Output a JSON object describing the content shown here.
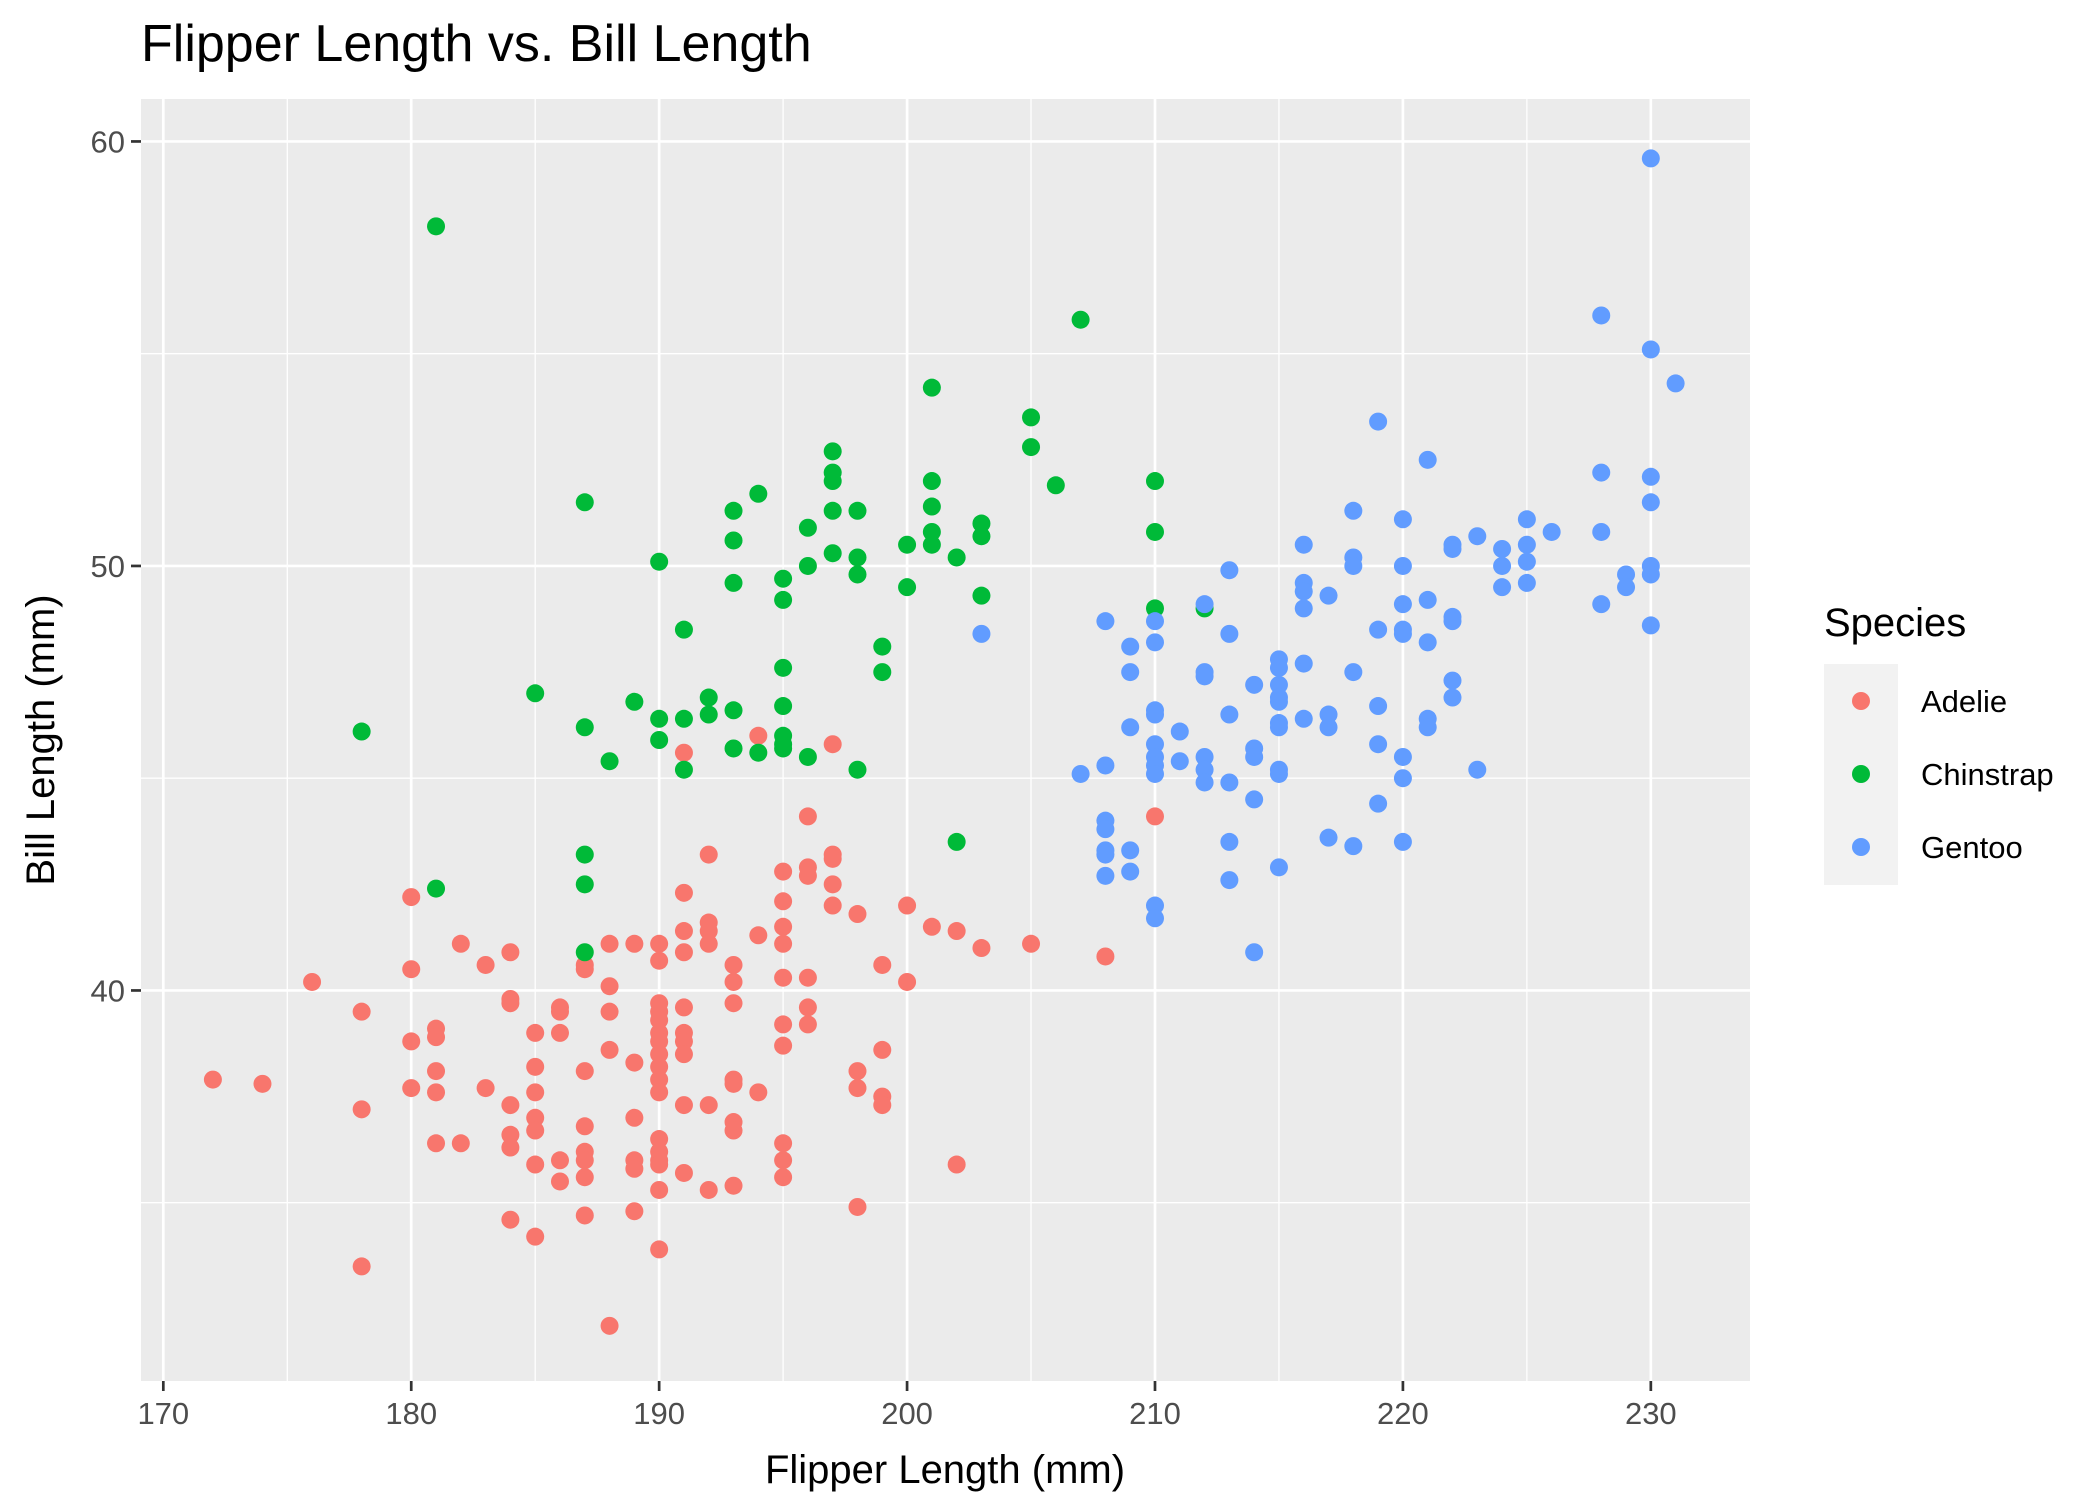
{
  "chart_data": {
    "type": "scatter",
    "title": "Flipper Length vs. Bill Length",
    "xlabel": "Flipper Length (mm)",
    "ylabel": "Bill Length (mm)",
    "xlim": [
      169.1,
      234
    ],
    "ylim": [
      30.8,
      61
    ],
    "x_ticks": [
      170,
      180,
      190,
      200,
      210,
      220,
      230
    ],
    "y_ticks": [
      40,
      50,
      60
    ],
    "grid": true,
    "legend": {
      "title": "Species",
      "placement": "right"
    },
    "series": [
      {
        "name": "Adelie",
        "color": "#F8766D",
        "points": [
          [
            172,
            37.9
          ],
          [
            174,
            37.8
          ],
          [
            176,
            40.2
          ],
          [
            178,
            39.5
          ],
          [
            178,
            37.2
          ],
          [
            178,
            33.5
          ],
          [
            180,
            42.2
          ],
          [
            180,
            40.5
          ],
          [
            180,
            38.8
          ],
          [
            180,
            37.7
          ],
          [
            181,
            39.1
          ],
          [
            181,
            38.9
          ],
          [
            181,
            38.1
          ],
          [
            181,
            37.6
          ],
          [
            181,
            36.4
          ],
          [
            182,
            41.1
          ],
          [
            182,
            36.4
          ],
          [
            183,
            40.6
          ],
          [
            183,
            37.7
          ],
          [
            184,
            40.9
          ],
          [
            184,
            39.8
          ],
          [
            184,
            39.7
          ],
          [
            184,
            37.3
          ],
          [
            184,
            36.6
          ],
          [
            184,
            36.3
          ],
          [
            184,
            34.6
          ],
          [
            185,
            39.0
          ],
          [
            185,
            38.2
          ],
          [
            185,
            37.6
          ],
          [
            185,
            37.0
          ],
          [
            185,
            36.7
          ],
          [
            185,
            35.9
          ],
          [
            185,
            34.2
          ],
          [
            186,
            39.6
          ],
          [
            186,
            39.5
          ],
          [
            186,
            39.0
          ],
          [
            186,
            36.0
          ],
          [
            186,
            35.5
          ],
          [
            187,
            40.6
          ],
          [
            187,
            40.5
          ],
          [
            187,
            38.1
          ],
          [
            187,
            36.8
          ],
          [
            187,
            36.2
          ],
          [
            187,
            36.0
          ],
          [
            187,
            35.6
          ],
          [
            187,
            34.7
          ],
          [
            188,
            41.1
          ],
          [
            188,
            40.1
          ],
          [
            188,
            39.5
          ],
          [
            188,
            38.6
          ],
          [
            188,
            32.1
          ],
          [
            189,
            41.1
          ],
          [
            189,
            38.3
          ],
          [
            189,
            37.0
          ],
          [
            189,
            36.0
          ],
          [
            189,
            35.8
          ],
          [
            189,
            34.8
          ],
          [
            190,
            41.1
          ],
          [
            190,
            40.7
          ],
          [
            190,
            39.7
          ],
          [
            190,
            39.5
          ],
          [
            190,
            39.3
          ],
          [
            190,
            39.0
          ],
          [
            190,
            38.8
          ],
          [
            190,
            38.5
          ],
          [
            190,
            38.2
          ],
          [
            190,
            37.9
          ],
          [
            190,
            37.6
          ],
          [
            190,
            36.5
          ],
          [
            190,
            36.2
          ],
          [
            190,
            36.0
          ],
          [
            190,
            35.9
          ],
          [
            190,
            35.3
          ],
          [
            190,
            33.9
          ],
          [
            191,
            45.6
          ],
          [
            191,
            42.3
          ],
          [
            191,
            41.4
          ],
          [
            191,
            40.9
          ],
          [
            191,
            39.6
          ],
          [
            191,
            39.0
          ],
          [
            191,
            38.8
          ],
          [
            191,
            38.5
          ],
          [
            191,
            37.3
          ],
          [
            191,
            35.7
          ],
          [
            192,
            43.2
          ],
          [
            192,
            41.6
          ],
          [
            192,
            41.4
          ],
          [
            192,
            41.1
          ],
          [
            192,
            37.3
          ],
          [
            192,
            35.3
          ],
          [
            193,
            40.6
          ],
          [
            193,
            40.2
          ],
          [
            193,
            39.7
          ],
          [
            193,
            37.9
          ],
          [
            193,
            37.8
          ],
          [
            193,
            36.9
          ],
          [
            193,
            36.7
          ],
          [
            193,
            35.4
          ],
          [
            194,
            46.0
          ],
          [
            194,
            41.3
          ],
          [
            194,
            37.6
          ],
          [
            195,
            42.8
          ],
          [
            195,
            42.1
          ],
          [
            195,
            41.5
          ],
          [
            195,
            41.1
          ],
          [
            195,
            40.3
          ],
          [
            195,
            39.2
          ],
          [
            195,
            38.7
          ],
          [
            195,
            36.4
          ],
          [
            195,
            36.0
          ],
          [
            195,
            35.6
          ],
          [
            196,
            44.1
          ],
          [
            196,
            42.9
          ],
          [
            196,
            42.7
          ],
          [
            196,
            40.3
          ],
          [
            196,
            39.6
          ],
          [
            196,
            39.2
          ],
          [
            197,
            45.8
          ],
          [
            197,
            43.2
          ],
          [
            197,
            43.1
          ],
          [
            197,
            42.5
          ],
          [
            197,
            42.0
          ],
          [
            198,
            41.8
          ],
          [
            198,
            38.1
          ],
          [
            198,
            37.7
          ],
          [
            198,
            34.9
          ],
          [
            199,
            40.6
          ],
          [
            199,
            38.6
          ],
          [
            199,
            37.5
          ],
          [
            199,
            37.3
          ],
          [
            200,
            42.0
          ],
          [
            200,
            40.2
          ],
          [
            201,
            41.5
          ],
          [
            202,
            41.4
          ],
          [
            202,
            35.9
          ],
          [
            203,
            41.0
          ],
          [
            205,
            41.1
          ],
          [
            208,
            40.8
          ],
          [
            210,
            44.1
          ]
        ]
      },
      {
        "name": "Chinstrap",
        "color": "#00BA38",
        "points": [
          [
            178,
            46.1
          ],
          [
            181,
            58.0
          ],
          [
            181,
            42.4
          ],
          [
            185,
            47.0
          ],
          [
            187,
            51.5
          ],
          [
            187,
            46.2
          ],
          [
            187,
            43.2
          ],
          [
            187,
            42.5
          ],
          [
            187,
            40.9
          ],
          [
            188,
            45.4
          ],
          [
            189,
            46.8
          ],
          [
            190,
            50.1
          ],
          [
            190,
            46.4
          ],
          [
            190,
            45.9
          ],
          [
            191,
            48.5
          ],
          [
            191,
            46.4
          ],
          [
            191,
            45.2
          ],
          [
            192,
            46.9
          ],
          [
            192,
            46.5
          ],
          [
            193,
            51.3
          ],
          [
            193,
            50.6
          ],
          [
            193,
            49.6
          ],
          [
            193,
            46.6
          ],
          [
            193,
            45.7
          ],
          [
            194,
            51.7
          ],
          [
            194,
            45.6
          ],
          [
            195,
            49.7
          ],
          [
            195,
            49.2
          ],
          [
            195,
            47.6
          ],
          [
            195,
            46.7
          ],
          [
            195,
            46.0
          ],
          [
            195,
            45.8
          ],
          [
            195,
            45.7
          ],
          [
            196,
            50.9
          ],
          [
            196,
            50.0
          ],
          [
            196,
            45.5
          ],
          [
            197,
            52.7
          ],
          [
            197,
            52.2
          ],
          [
            197,
            52.0
          ],
          [
            197,
            51.3
          ],
          [
            197,
            50.3
          ],
          [
            198,
            51.3
          ],
          [
            198,
            50.2
          ],
          [
            198,
            49.8
          ],
          [
            198,
            45.2
          ],
          [
            199,
            48.1
          ],
          [
            199,
            47.5
          ],
          [
            200,
            50.5
          ],
          [
            200,
            49.5
          ],
          [
            201,
            54.2
          ],
          [
            201,
            52.0
          ],
          [
            201,
            51.4
          ],
          [
            201,
            50.8
          ],
          [
            201,
            50.5
          ],
          [
            202,
            50.2
          ],
          [
            202,
            43.5
          ],
          [
            203,
            51.0
          ],
          [
            203,
            50.7
          ],
          [
            203,
            49.3
          ],
          [
            205,
            53.5
          ],
          [
            205,
            52.8
          ],
          [
            206,
            51.9
          ],
          [
            207,
            55.8
          ],
          [
            210,
            52.0
          ],
          [
            210,
            50.8
          ],
          [
            210,
            49.0
          ],
          [
            212,
            49.0
          ]
        ]
      },
      {
        "name": "Gentoo",
        "color": "#619CFF",
        "points": [
          [
            203,
            48.4
          ],
          [
            207,
            45.1
          ],
          [
            208,
            48.7
          ],
          [
            208,
            45.3
          ],
          [
            208,
            44.0
          ],
          [
            208,
            43.8
          ],
          [
            208,
            43.3
          ],
          [
            208,
            43.2
          ],
          [
            208,
            42.7
          ],
          [
            209,
            48.1
          ],
          [
            209,
            47.5
          ],
          [
            209,
            46.2
          ],
          [
            209,
            43.3
          ],
          [
            209,
            42.8
          ],
          [
            210,
            48.7
          ],
          [
            210,
            48.2
          ],
          [
            210,
            46.6
          ],
          [
            210,
            46.5
          ],
          [
            210,
            45.8
          ],
          [
            210,
            45.5
          ],
          [
            210,
            45.3
          ],
          [
            210,
            45.1
          ],
          [
            210,
            42.0
          ],
          [
            210,
            41.7
          ],
          [
            211,
            46.1
          ],
          [
            211,
            45.4
          ],
          [
            212,
            49.1
          ],
          [
            212,
            47.5
          ],
          [
            212,
            47.4
          ],
          [
            212,
            45.5
          ],
          [
            212,
            45.2
          ],
          [
            212,
            44.9
          ],
          [
            213,
            49.9
          ],
          [
            213,
            48.4
          ],
          [
            213,
            46.5
          ],
          [
            213,
            44.9
          ],
          [
            213,
            43.5
          ],
          [
            213,
            42.6
          ],
          [
            214,
            47.2
          ],
          [
            214,
            45.7
          ],
          [
            214,
            45.5
          ],
          [
            214,
            44.5
          ],
          [
            214,
            40.9
          ],
          [
            215,
            47.8
          ],
          [
            215,
            47.6
          ],
          [
            215,
            47.2
          ],
          [
            215,
            46.9
          ],
          [
            215,
            46.8
          ],
          [
            215,
            46.3
          ],
          [
            215,
            46.2
          ],
          [
            215,
            45.2
          ],
          [
            215,
            45.1
          ],
          [
            215,
            42.9
          ],
          [
            216,
            50.5
          ],
          [
            216,
            49.6
          ],
          [
            216,
            49.4
          ],
          [
            216,
            49.0
          ],
          [
            216,
            47.7
          ],
          [
            216,
            46.4
          ],
          [
            217,
            49.3
          ],
          [
            217,
            46.5
          ],
          [
            217,
            46.2
          ],
          [
            217,
            43.6
          ],
          [
            218,
            51.3
          ],
          [
            218,
            50.2
          ],
          [
            218,
            50.0
          ],
          [
            218,
            47.5
          ],
          [
            218,
            43.4
          ],
          [
            219,
            53.4
          ],
          [
            219,
            48.5
          ],
          [
            219,
            46.7
          ],
          [
            219,
            45.8
          ],
          [
            219,
            44.4
          ],
          [
            220,
            51.1
          ],
          [
            220,
            50.0
          ],
          [
            220,
            49.1
          ],
          [
            220,
            48.5
          ],
          [
            220,
            48.4
          ],
          [
            220,
            45.5
          ],
          [
            220,
            45.0
          ],
          [
            220,
            43.5
          ],
          [
            221,
            52.5
          ],
          [
            221,
            49.2
          ],
          [
            221,
            48.2
          ],
          [
            221,
            46.4
          ],
          [
            221,
            46.2
          ],
          [
            222,
            50.5
          ],
          [
            222,
            50.4
          ],
          [
            222,
            48.8
          ],
          [
            222,
            48.7
          ],
          [
            222,
            47.3
          ],
          [
            222,
            46.9
          ],
          [
            223,
            50.7
          ],
          [
            223,
            45.2
          ],
          [
            224,
            50.4
          ],
          [
            224,
            50.0
          ],
          [
            224,
            49.5
          ],
          [
            225,
            51.1
          ],
          [
            225,
            50.5
          ],
          [
            225,
            50.1
          ],
          [
            225,
            49.6
          ],
          [
            226,
            50.8
          ],
          [
            228,
            55.9
          ],
          [
            228,
            52.2
          ],
          [
            228,
            50.8
          ],
          [
            228,
            49.1
          ],
          [
            229,
            49.8
          ],
          [
            229,
            49.5
          ],
          [
            230,
            59.6
          ],
          [
            230,
            55.1
          ],
          [
            230,
            52.1
          ],
          [
            230,
            51.5
          ],
          [
            230,
            50.0
          ],
          [
            230,
            49.8
          ],
          [
            230,
            48.6
          ],
          [
            231,
            54.3
          ]
        ]
      }
    ]
  }
}
